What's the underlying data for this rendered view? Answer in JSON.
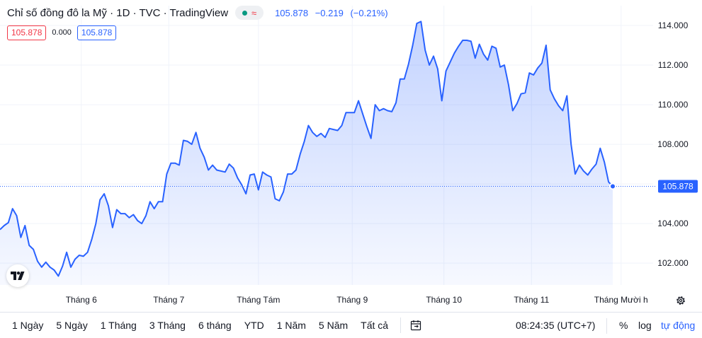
{
  "header": {
    "title": "Chỉ số đồng đô la Mỹ · 1D · TVC · TradingView",
    "status_symbol": "≈",
    "last": "105.878",
    "change": "−0.219",
    "change_pct": "(−0.21%)",
    "sell": "105.878",
    "spread": "0.000",
    "buy": "105.878"
  },
  "colors": {
    "line": "#2962ff",
    "fill": "#2962ff",
    "negative": "#f23645",
    "positive": "#089981",
    "grid": "#f0f3fa",
    "axis_text": "#131722"
  },
  "chart_data": {
    "type": "area",
    "title": "",
    "xlabel": "",
    "ylabel": "",
    "x_ticks": [
      "Tháng 6",
      "Tháng 7",
      "Tháng Tám",
      "Tháng 9",
      "Tháng 10",
      "Tháng 11",
      "Tháng Mười h"
    ],
    "y_ticks": [
      "102.000",
      "104.000",
      "106.000",
      "108.000",
      "110.000",
      "112.000",
      "114.000"
    ],
    "ylim": [
      100.9,
      115.0
    ],
    "grid": true,
    "last_value_label": "105.878",
    "series": [
      {
        "values": [
          103.7,
          103.9,
          104.05,
          104.75,
          104.4,
          103.3,
          103.9,
          102.9,
          102.7,
          102.1,
          101.8,
          102.05,
          101.8,
          101.65,
          101.35,
          101.85,
          102.55,
          101.8,
          102.2,
          102.4,
          102.35,
          102.55,
          103.2,
          104.0,
          105.2,
          105.5,
          104.9,
          103.8,
          104.7,
          104.5,
          104.5,
          104.3,
          104.45,
          104.15,
          104.0,
          104.4,
          105.1,
          104.75,
          105.1,
          105.1,
          106.5,
          107.05,
          107.05,
          106.95,
          108.2,
          108.15,
          108.0,
          108.6,
          107.8,
          107.35,
          106.7,
          106.95,
          106.7,
          106.65,
          106.6,
          107.0,
          106.8,
          106.3,
          105.95,
          105.5,
          106.45,
          106.5,
          105.7,
          106.6,
          106.45,
          106.35,
          105.25,
          105.15,
          105.6,
          106.5,
          106.5,
          106.7,
          107.5,
          108.15,
          108.95,
          108.6,
          108.4,
          108.55,
          108.35,
          108.8,
          108.75,
          108.7,
          108.95,
          109.6,
          109.6,
          109.6,
          110.2,
          109.55,
          108.9,
          108.3,
          110.0,
          109.7,
          109.8,
          109.7,
          109.65,
          110.1,
          111.3,
          111.3,
          112.05,
          113.0,
          114.1,
          114.2,
          112.75,
          112.0,
          112.45,
          111.8,
          110.2,
          111.7,
          112.15,
          112.6,
          112.95,
          113.25,
          113.25,
          113.2,
          112.35,
          113.05,
          112.55,
          112.25,
          112.95,
          112.85,
          111.9,
          112.0,
          111.0,
          109.7,
          110.05,
          110.55,
          110.6,
          111.6,
          111.5,
          111.85,
          112.1,
          113.0,
          110.75,
          110.3,
          109.95,
          109.7,
          110.45,
          108.0,
          106.5,
          106.95,
          106.65,
          106.45,
          106.75,
          107.0,
          107.8,
          107.1,
          106.1,
          105.878
        ]
      }
    ]
  },
  "toolbar": {
    "ranges": [
      "1 Ngày",
      "5 Ngày",
      "1 Tháng",
      "3 Tháng",
      "6 tháng",
      "YTD",
      "1 Năm",
      "5 Năm",
      "Tất cả"
    ],
    "clock": "08:24:35 (UTC+7)",
    "percent": "%",
    "log": "log",
    "auto": "tự động"
  }
}
